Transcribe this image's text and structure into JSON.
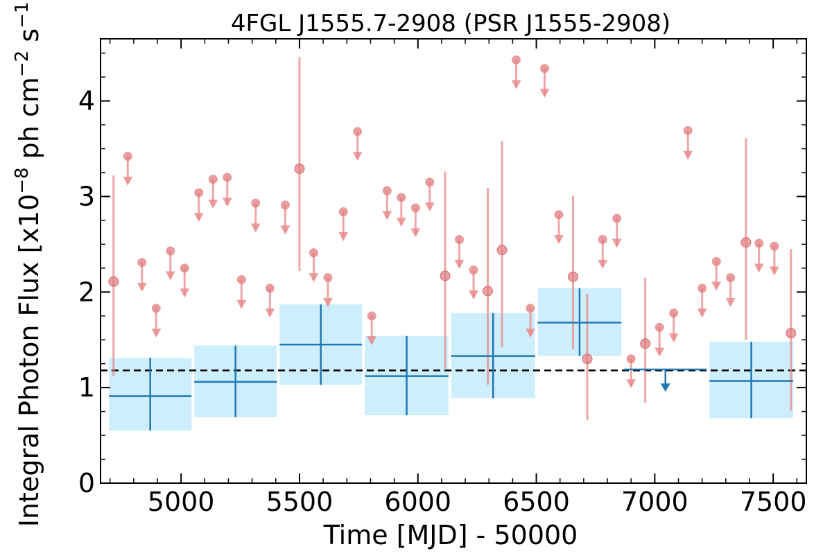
{
  "chart_data": {
    "type": "scatter",
    "title": "4FGL J1555.7-2908 (PSR J1555-2908)",
    "xlabel": "Time [MJD] - 50000",
    "ylabel": "Integral Photon Flux [x10$^{-8}$ ph cm$^{-2}$ s$^{-1}$]",
    "ylabel_parts": {
      "prefix": "Integral Photon Flux [x10",
      "exp1": "−8",
      "middle": " ph cm",
      "exp2": "−2",
      "unit_s": " s",
      "exp3": "−1",
      "suffix": "]"
    },
    "xlim": [
      4660,
      7640
    ],
    "ylim": [
      0,
      4.65
    ],
    "x_ticks": [
      5000,
      5500,
      6000,
      6500,
      7000,
      7500
    ],
    "x_tick_labels": [
      "5000",
      "5500",
      "6000",
      "6500",
      "7000",
      "7500"
    ],
    "y_ticks": [
      0,
      1,
      2,
      3,
      4
    ],
    "y_tick_labels": [
      "0",
      "1",
      "2",
      "3",
      "4"
    ],
    "grid": false,
    "reference_line": {
      "y": 1.18,
      "style": "dashed",
      "color": "#000000"
    },
    "colors": {
      "fine_bins": "#e8888a",
      "fine_bins_marker": "#e07b7d",
      "coarse_bins": "#1f77b4",
      "coarse_band": "#cdeefc"
    },
    "series": [
      {
        "points": [
          {
            "x": 4715,
            "y": 2.11,
            "lo": 1.12,
            "hi": 3.22
          },
          {
            "x": 5500,
            "y": 3.29,
            "lo": 2.22,
            "hi": 4.46
          },
          {
            "x": 6115,
            "y": 2.17,
            "lo": 1.2,
            "hi": 3.26
          },
          {
            "x": 6295,
            "y": 2.01,
            "lo": 1.03,
            "hi": 3.09
          },
          {
            "x": 6355,
            "y": 2.44,
            "lo": 1.42,
            "hi": 3.58
          },
          {
            "x": 6655,
            "y": 2.16,
            "lo": 1.4,
            "hi": 3.01
          },
          {
            "x": 6715,
            "y": 1.3,
            "lo": 0.66,
            "hi": 1.98
          },
          {
            "x": 6960,
            "y": 1.46,
            "lo": 0.84,
            "hi": 2.15
          },
          {
            "x": 7385,
            "y": 2.52,
            "lo": 1.5,
            "hi": 3.61
          },
          {
            "x": 7575,
            "y": 1.57,
            "lo": 0.76,
            "hi": 2.45
          }
        ],
        "upper_limits": [
          {
            "x": 4775,
            "y": 3.42
          },
          {
            "x": 4835,
            "y": 2.31
          },
          {
            "x": 4895,
            "y": 1.83
          },
          {
            "x": 4955,
            "y": 2.43
          },
          {
            "x": 5015,
            "y": 2.25
          },
          {
            "x": 5075,
            "y": 3.04
          },
          {
            "x": 5135,
            "y": 3.18
          },
          {
            "x": 5195,
            "y": 3.2
          },
          {
            "x": 5255,
            "y": 2.13
          },
          {
            "x": 5315,
            "y": 2.93
          },
          {
            "x": 5375,
            "y": 2.04
          },
          {
            "x": 5440,
            "y": 2.91
          },
          {
            "x": 5560,
            "y": 2.41
          },
          {
            "x": 5620,
            "y": 2.15
          },
          {
            "x": 5685,
            "y": 2.84
          },
          {
            "x": 5745,
            "y": 3.68
          },
          {
            "x": 5805,
            "y": 1.75
          },
          {
            "x": 5870,
            "y": 3.06
          },
          {
            "x": 5930,
            "y": 2.99
          },
          {
            "x": 5990,
            "y": 2.88
          },
          {
            "x": 6050,
            "y": 3.15
          },
          {
            "x": 6175,
            "y": 2.55
          },
          {
            "x": 6235,
            "y": 2.23
          },
          {
            "x": 6475,
            "y": 1.83
          },
          {
            "x": 6415,
            "y": 4.43
          },
          {
            "x": 6535,
            "y": 4.34
          },
          {
            "x": 6595,
            "y": 2.81
          },
          {
            "x": 6780,
            "y": 2.55
          },
          {
            "x": 6840,
            "y": 2.77
          },
          {
            "x": 6900,
            "y": 1.3
          },
          {
            "x": 7020,
            "y": 1.63
          },
          {
            "x": 7080,
            "y": 1.78
          },
          {
            "x": 7140,
            "y": 3.69
          },
          {
            "x": 7200,
            "y": 2.04
          },
          {
            "x": 7260,
            "y": 2.32
          },
          {
            "x": 7320,
            "y": 2.15
          },
          {
            "x": 7440,
            "y": 2.51
          },
          {
            "x": 7505,
            "y": 2.48
          }
        ]
      },
      {
        "bins": [
          {
            "x0": 4690,
            "x1": 5050,
            "y": 0.91,
            "lo": 0.55,
            "hi": 1.31
          },
          {
            "x0": 5050,
            "x1": 5410,
            "y": 1.06,
            "lo": 0.69,
            "hi": 1.44
          },
          {
            "x0": 5410,
            "x1": 5770,
            "y": 1.45,
            "lo": 1.03,
            "hi": 1.87
          },
          {
            "x0": 5770,
            "x1": 6135,
            "y": 1.12,
            "lo": 0.71,
            "hi": 1.54
          },
          {
            "x0": 6135,
            "x1": 6500,
            "y": 1.33,
            "lo": 0.89,
            "hi": 1.78
          },
          {
            "x0": 6500,
            "x1": 6865,
            "y": 1.68,
            "lo": 1.33,
            "hi": 2.04
          },
          {
            "x0": 7225,
            "x1": 7590,
            "y": 1.07,
            "lo": 0.68,
            "hi": 1.48
          }
        ],
        "upper_limits": [
          {
            "x0": 6865,
            "x1": 7225,
            "y": 1.19
          }
        ]
      }
    ]
  }
}
